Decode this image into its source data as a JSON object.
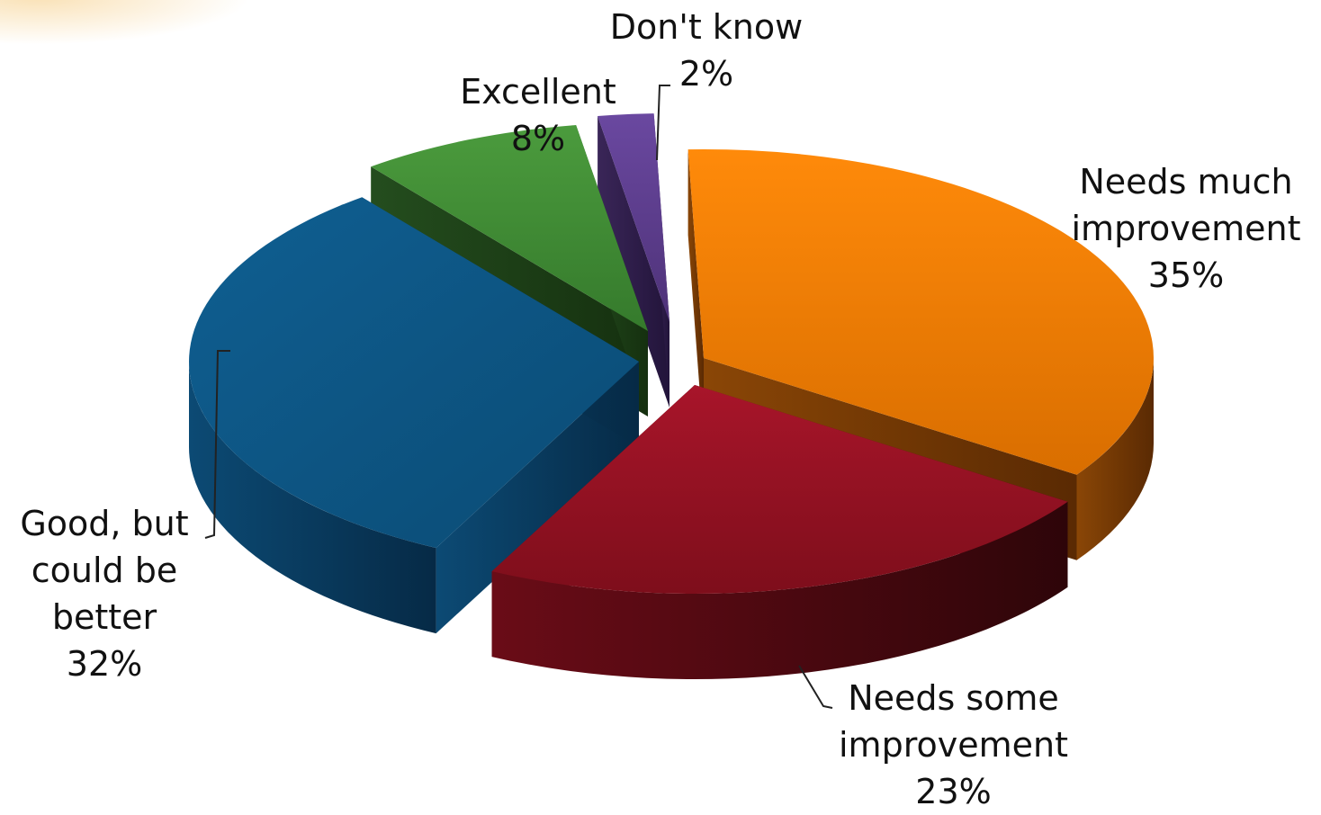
{
  "chart_data": {
    "type": "pie",
    "title": "",
    "slices": [
      {
        "label": "Needs much improvement",
        "label_lines": [
          "Needs much",
          "improvement"
        ],
        "value": 35,
        "value_text": "35%",
        "color": "#f07f05",
        "side_color": "#7a3a06"
      },
      {
        "label": "Needs some improvement",
        "label_lines": [
          "Needs some",
          "improvement"
        ],
        "value": 23,
        "value_text": "23%",
        "color": "#9b1220",
        "side_color": "#4e0910"
      },
      {
        "label": "Good, but could be better",
        "label_lines": [
          "Good, but",
          "could be",
          "better"
        ],
        "value": 32,
        "value_text": "32%",
        "color": "#0e5a8c",
        "side_color": "#083556"
      },
      {
        "label": "Excellent",
        "label_lines": [
          "Excellent"
        ],
        "value": 8,
        "value_text": "8%",
        "color": "#3f8a34",
        "side_color": "#1d3f18"
      },
      {
        "label": "Don't know",
        "label_lines": [
          "Don't know"
        ],
        "value": 2,
        "value_text": "2%",
        "color": "#5e3e8a",
        "side_color": "#2c1c44"
      }
    ]
  }
}
